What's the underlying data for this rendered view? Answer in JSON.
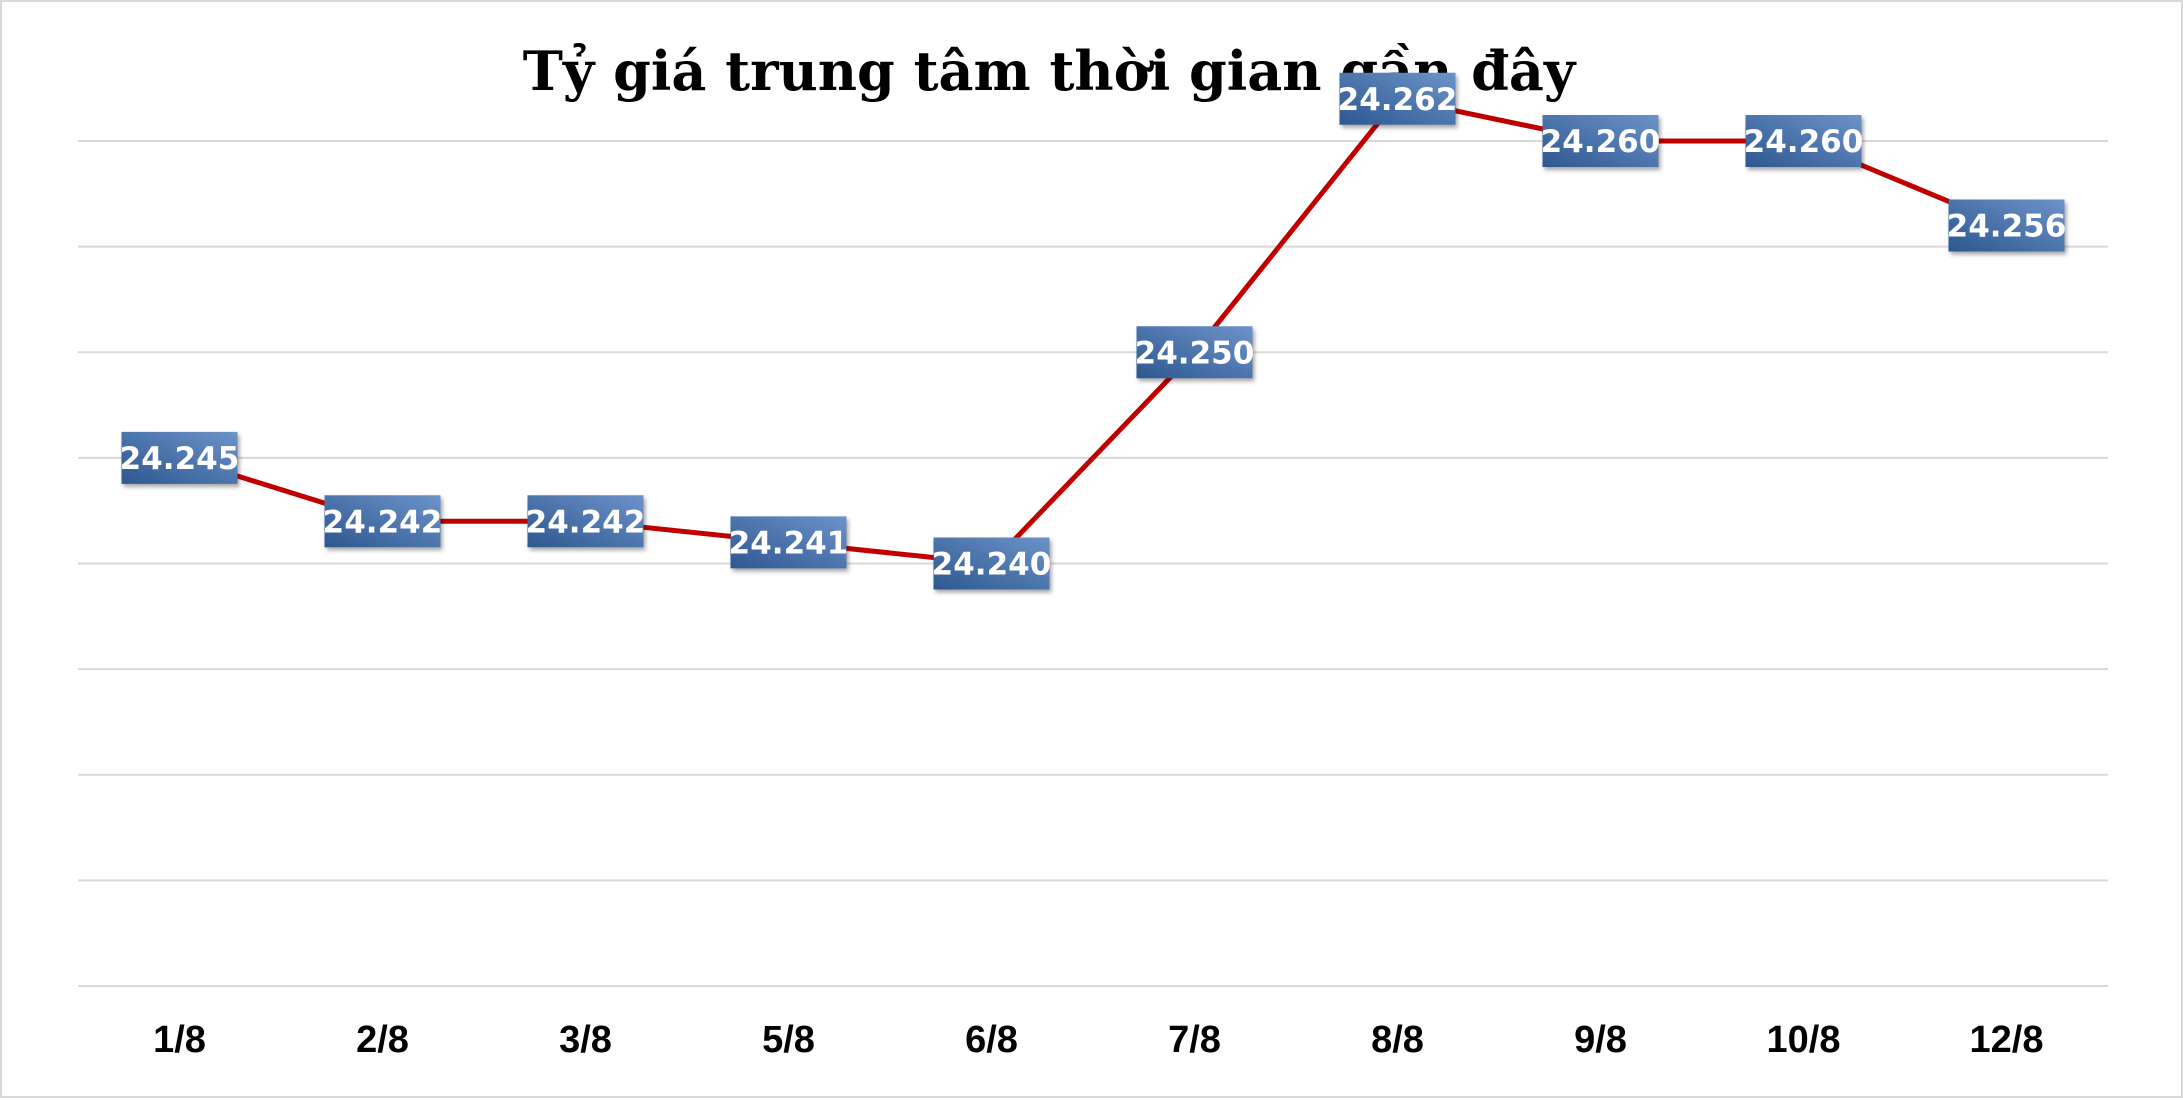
{
  "chart_data": {
    "type": "line",
    "title": "Tỷ giá trung tâm thời gian gần đây",
    "xlabel": "",
    "ylabel": "",
    "categories": [
      "1/8",
      "2/8",
      "3/8",
      "5/8",
      "6/8",
      "7/8",
      "8/8",
      "9/8",
      "10/8",
      "12/8"
    ],
    "series": [
      {
        "values": [
          24245,
          24242,
          24242,
          24241,
          24240,
          24250,
          24262,
          24260,
          24260,
          24256
        ],
        "labels": [
          "24.245",
          "24.242",
          "24.242",
          "24.241",
          "24.240",
          "24.250",
          "24.262",
          "24.260",
          "24.260",
          "24.256"
        ]
      }
    ],
    "ylim": [
      24220,
      24260
    ],
    "y_gridline_step": 5,
    "grid": true,
    "legend": "none",
    "colors": {
      "line": "#c00000",
      "label_box_dark": "#2e5790",
      "label_box_light": "#6c93c9",
      "label_text": "#ffffff",
      "gridline": "#d9d9d9"
    }
  }
}
